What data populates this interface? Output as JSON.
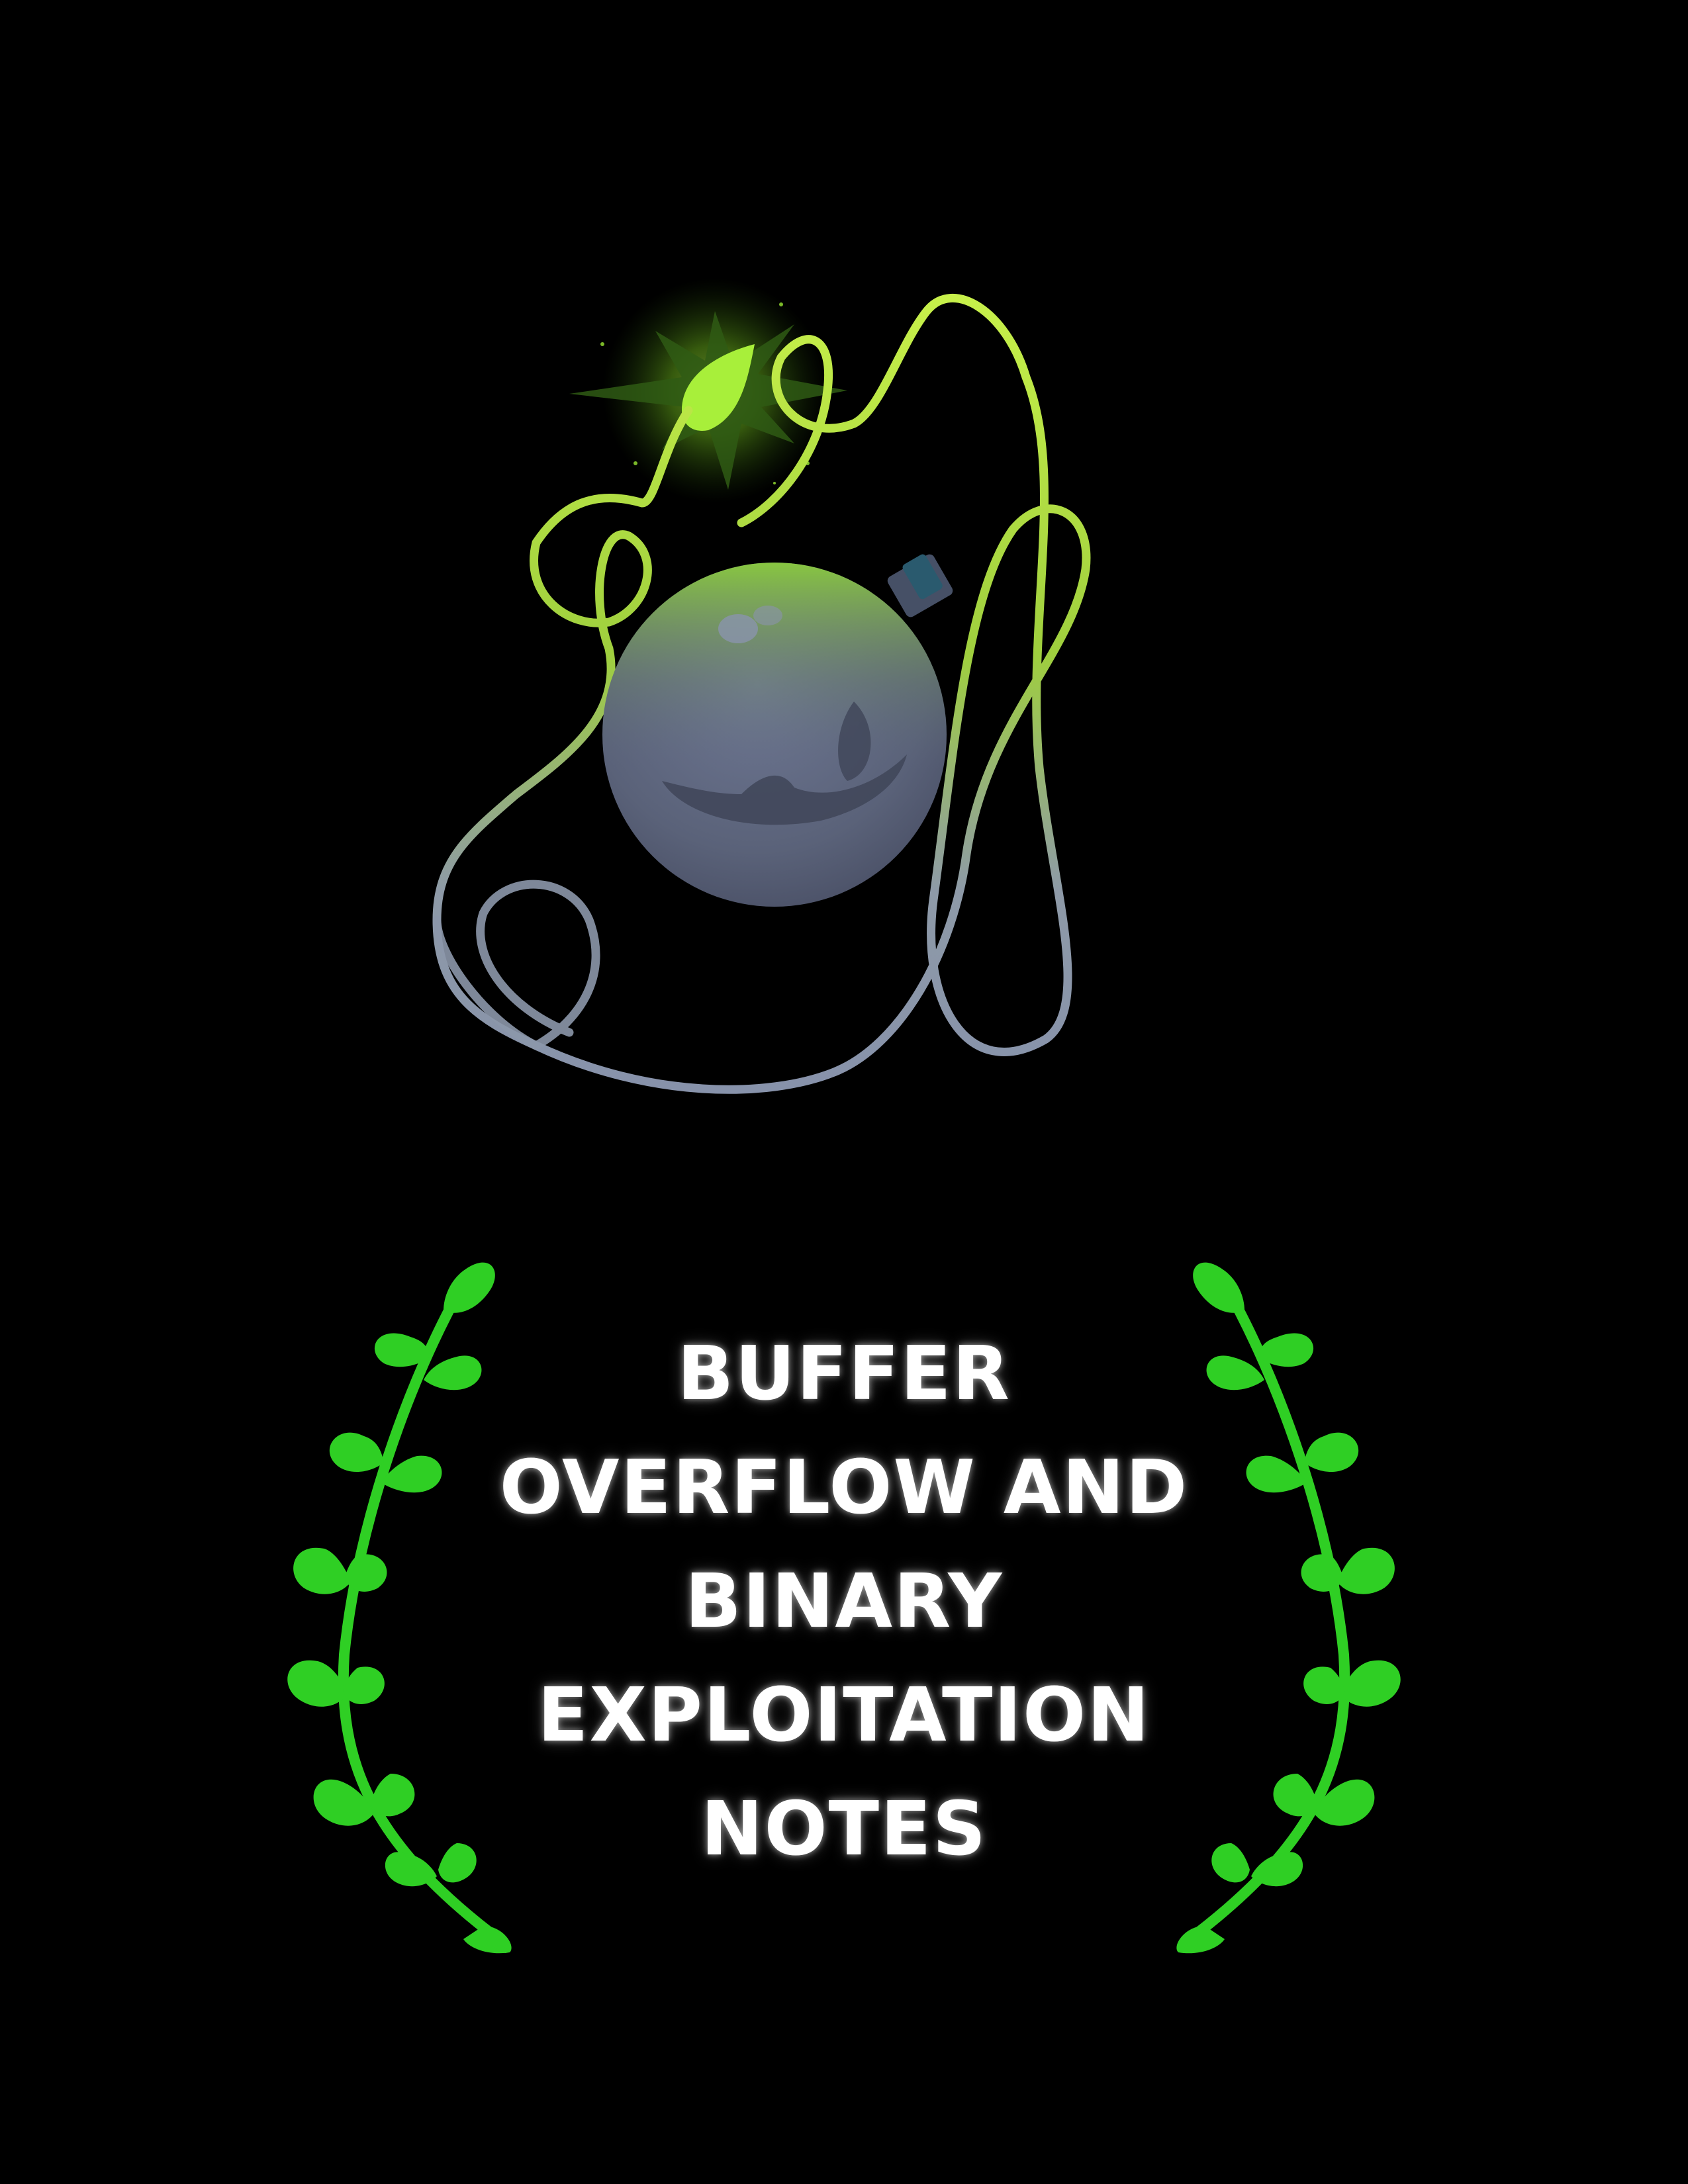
{
  "cover": {
    "background_color": "#000000",
    "title_lines": [
      "BUFFER",
      "OVERFLOW AND",
      "BINARY",
      "EXPLOITATION",
      "NOTES"
    ],
    "title_color": "#ffffff"
  },
  "illustration": {
    "subject": "bomb-with-looping-lit-fuse",
    "fuse_colors": [
      "#b5e83a",
      "#8a97ab"
    ],
    "bomb_color": "#5f687f",
    "spark_color": "#9be028"
  },
  "laurels": {
    "color": "#2fcf24"
  }
}
